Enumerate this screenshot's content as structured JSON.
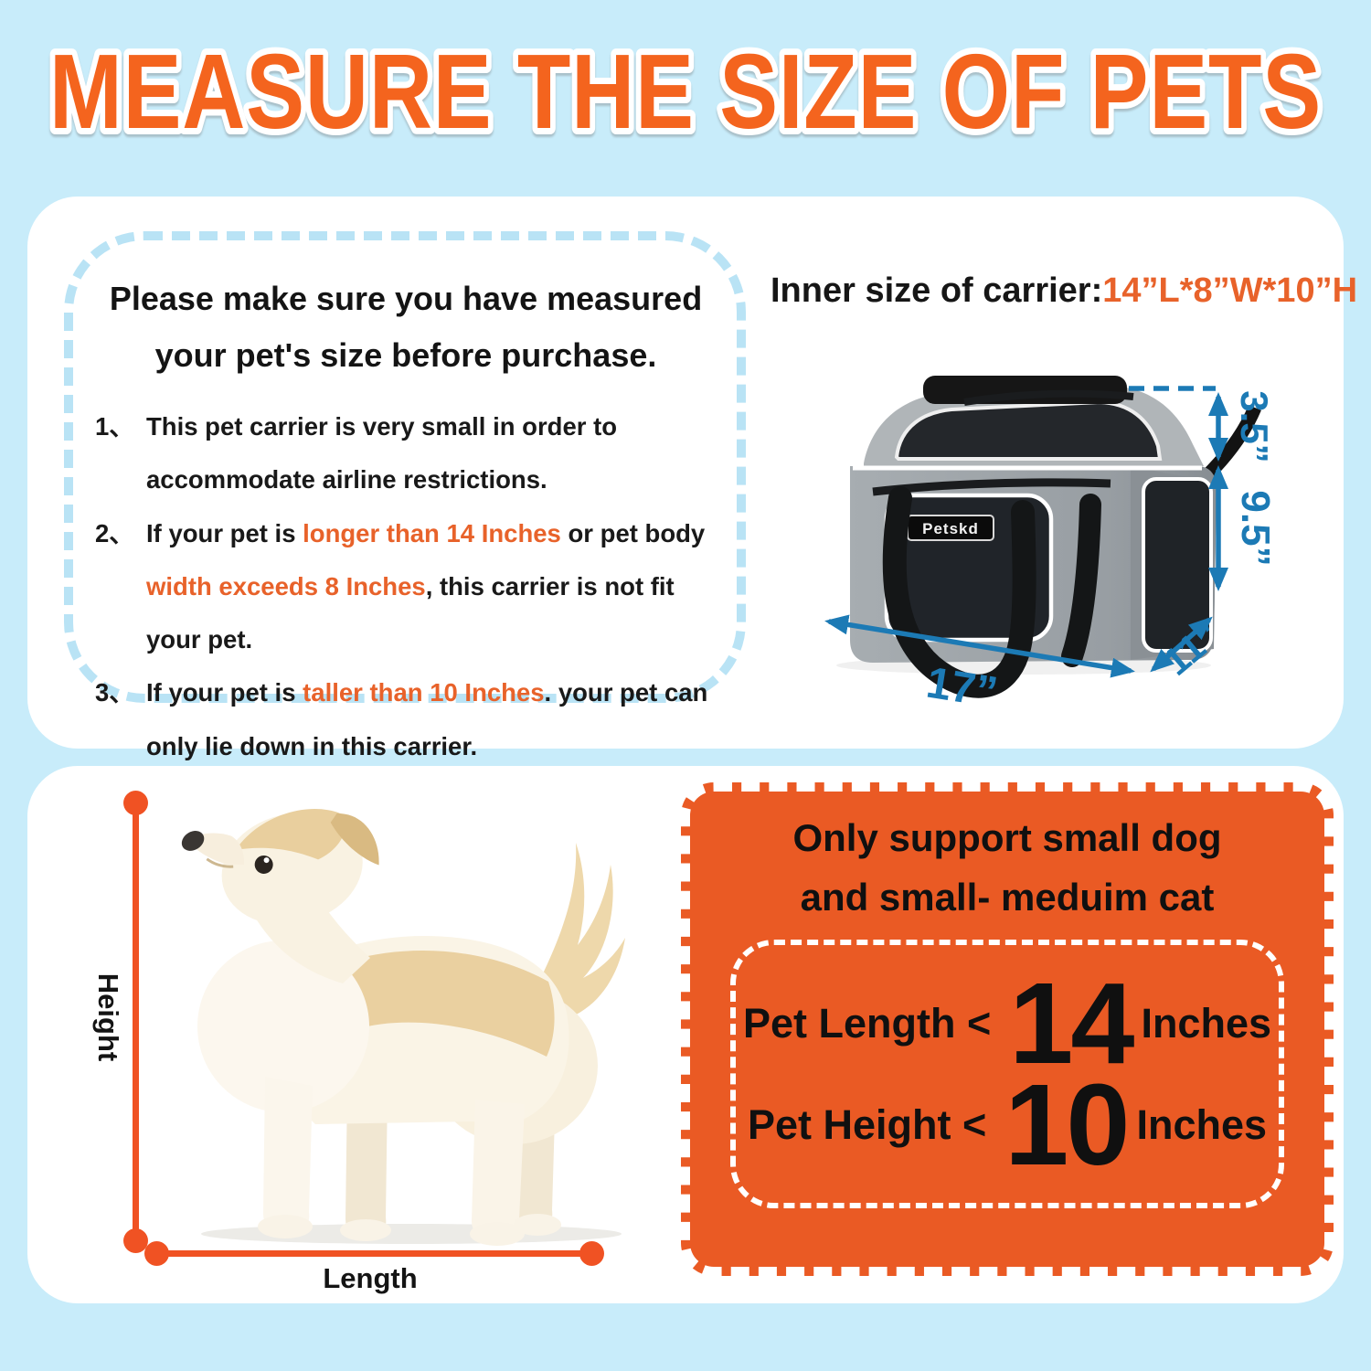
{
  "page": {
    "title": "MEASURE THE SIZE OF PETS"
  },
  "notice": {
    "heading1": "Please make sure you have measured",
    "heading2": "your pet's size before purchase.",
    "items": [
      {
        "num": "1、",
        "segments": [
          {
            "t": "This pet carrier is very small in order  to accommodate airline restrictions.",
            "c": "black"
          }
        ]
      },
      {
        "num": "2、",
        "segments": [
          {
            "t": "If your pet is ",
            "c": "black"
          },
          {
            "t": "longer than 14 Inches",
            "c": "orange"
          },
          {
            "t": " or pet body ",
            "c": "black"
          },
          {
            "t": "width exceeds 8 Inches",
            "c": "orange"
          },
          {
            "t": ", this carrier is not fit your pet.",
            "c": "black"
          }
        ]
      },
      {
        "num": "3、",
        "segments": [
          {
            "t": " If your pet is ",
            "c": "black"
          },
          {
            "t": "taller than 10 Inches",
            "c": "orange"
          },
          {
            "t": ". your pet can only lie down in this carrier.",
            "c": "black"
          }
        ]
      }
    ]
  },
  "carrier": {
    "heading_label": "Inner size of carrier:",
    "heading_value": "14”L*8”W*10”H",
    "logo": "Petskd",
    "dim_top": "3.5”",
    "dim_door": "9.5”",
    "dim_depth": "11”",
    "dim_length": "17”"
  },
  "measure": {
    "height": "Height",
    "length": "Length"
  },
  "support": {
    "title1": "Only support small dog",
    "title2": "and small- meduim cat",
    "rows": [
      {
        "prefix": "Pet Length <",
        "big": "14",
        "suffix": "Inches"
      },
      {
        "prefix": "Pet Height <",
        "big": "10",
        "suffix": "Inches"
      }
    ]
  },
  "colors": {
    "background": "#c8ecfa",
    "title_orange": "#f4641e",
    "accent_orange": "#e8622a",
    "box_orange": "#ea5a24",
    "measure_orange": "#f05223",
    "dimension_blue": "#1c7ab5",
    "dashed_blue": "#b9e3f5"
  }
}
